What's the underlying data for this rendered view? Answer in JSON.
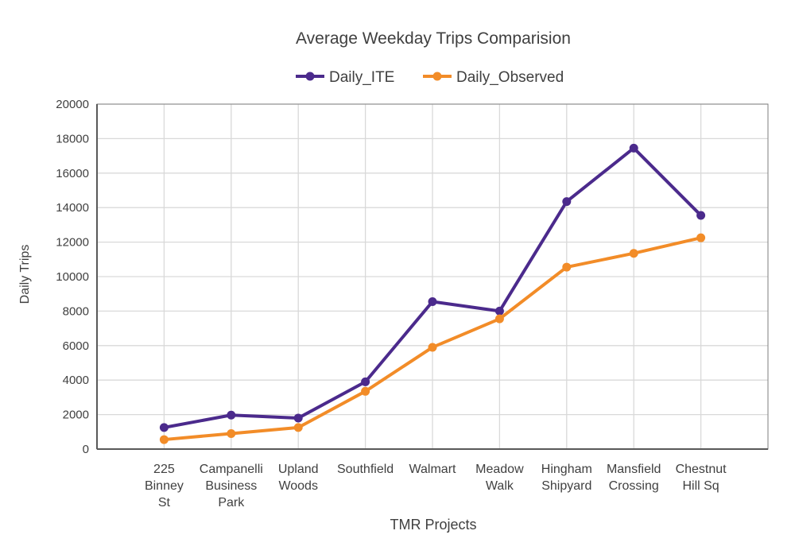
{
  "chart_data": {
    "type": "line",
    "title": "Average Weekday Trips Comparision",
    "xlabel": "TMR Projects",
    "ylabel": "Daily Trips",
    "categories": [
      [
        "225",
        "Binney",
        "St"
      ],
      [
        "Campanelli",
        "Business",
        "Park"
      ],
      [
        "Upland",
        "Woods"
      ],
      [
        "Southfield"
      ],
      [
        "Walmart"
      ],
      [
        "Meadow",
        "Walk"
      ],
      [
        "Hingham",
        "Shipyard"
      ],
      [
        "Mansfield",
        "Crossing"
      ],
      [
        "Chestnut",
        "Hill Sq"
      ]
    ],
    "ylim": [
      0,
      20000
    ],
    "yticks": [
      0,
      2000,
      4000,
      6000,
      8000,
      10000,
      12000,
      14000,
      16000,
      18000,
      20000
    ],
    "grid": true,
    "legend_placement": "top",
    "series": [
      {
        "name": "Daily_ITE",
        "color": "#4b2a8c",
        "values": [
          1250,
          1970,
          1800,
          3900,
          8550,
          8000,
          14350,
          17450,
          13550
        ]
      },
      {
        "name": "Daily_Observed",
        "color": "#f28c28",
        "values": [
          550,
          900,
          1250,
          3350,
          5900,
          7550,
          10550,
          11350,
          12250
        ]
      }
    ]
  }
}
